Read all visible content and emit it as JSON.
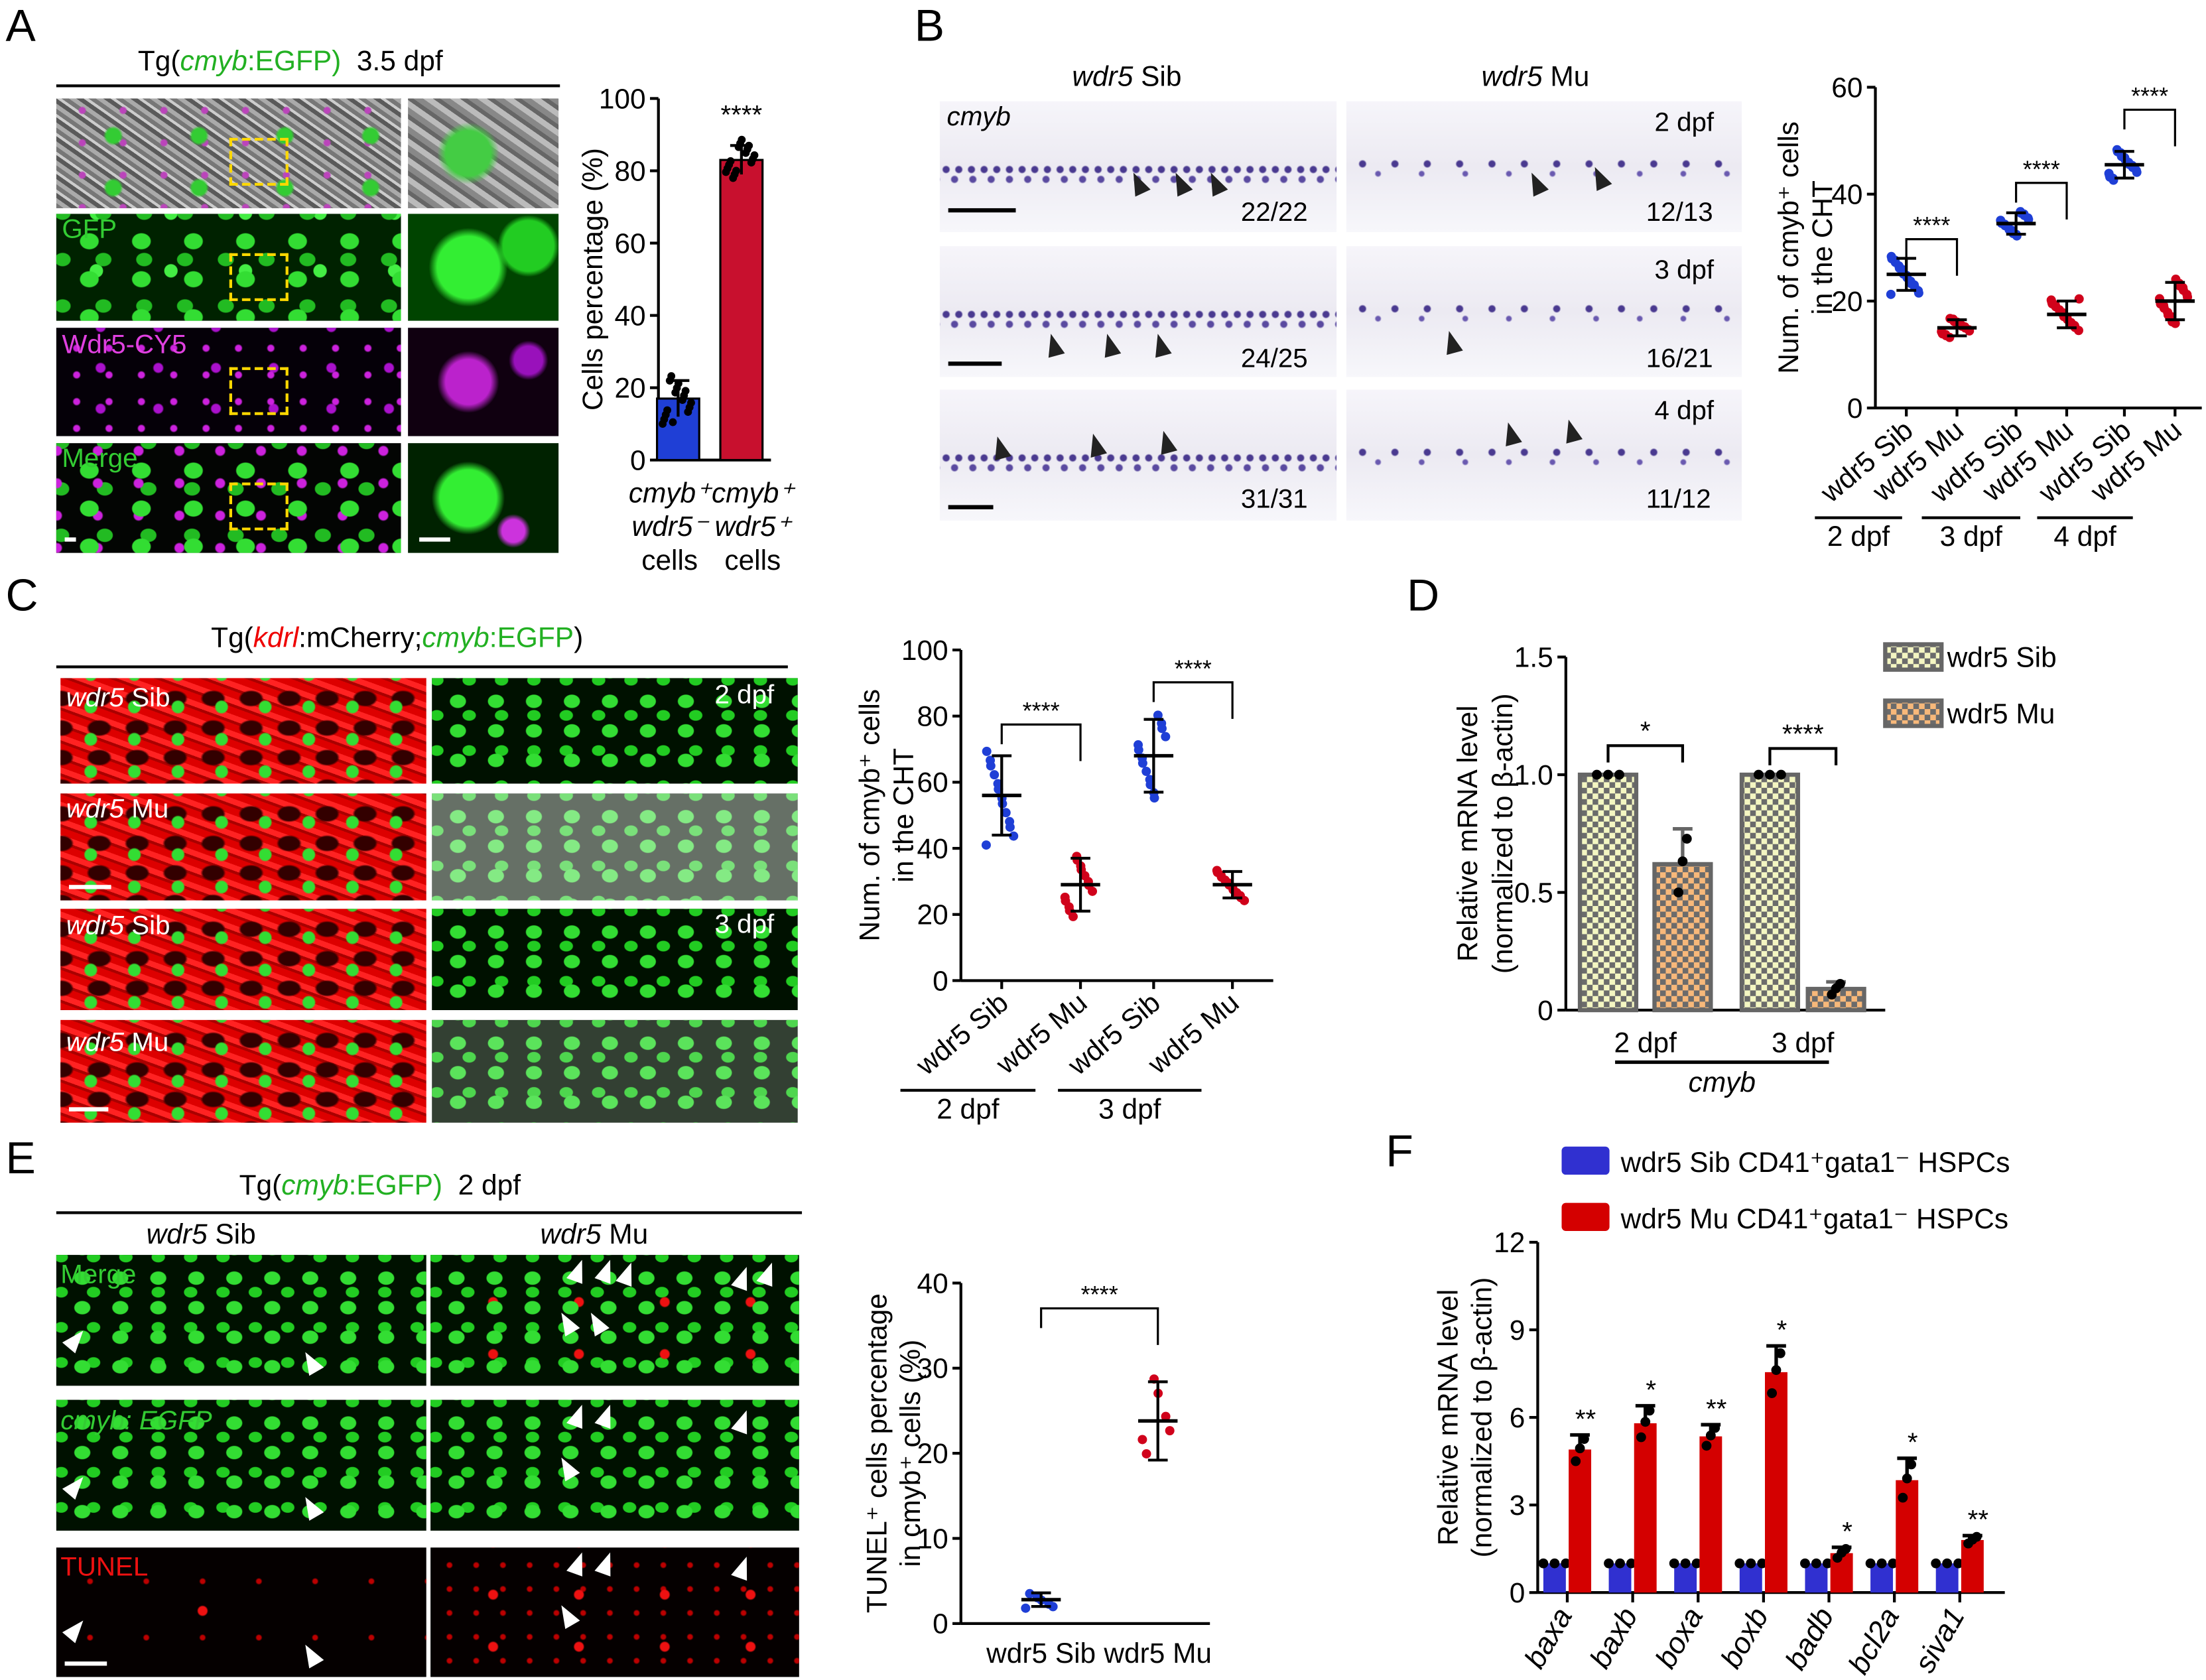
{
  "panels": {
    "A": {
      "letter": "A",
      "title": {
        "pre": "Tg(",
        "gene": "cmyb",
        "post": ":EGFP)",
        "stage": "3.5 dpf"
      },
      "row_labels": [
        "GFP",
        "Wdr5-CY5",
        "Merge"
      ]
    },
    "B": {
      "letter": "B",
      "col_headers": [
        {
          "gene": "wdr5",
          "label": "Sib"
        },
        {
          "gene": "wdr5",
          "label": "Mu"
        }
      ],
      "probe": "cmyb",
      "stages": [
        "2 dpf",
        "3 dpf",
        "4 dpf"
      ],
      "fractions": [
        "22/22",
        "12/13",
        "24/25",
        "16/21",
        "31/31",
        "11/12"
      ]
    },
    "C": {
      "letter": "C",
      "title": {
        "pre": "Tg(",
        "gene1": "kdrl",
        "mid1": ":mCherry;",
        "gene2": "cmyb",
        "mid2": ":EGFP",
        "post": ")"
      },
      "row_labels": [
        {
          "gene": "wdr5",
          "label": "Sib"
        },
        {
          "gene": "wdr5",
          "label": "Mu"
        },
        {
          "gene": "wdr5",
          "label": "Sib"
        },
        {
          "gene": "wdr5",
          "label": "Mu"
        }
      ],
      "stages": [
        "2 dpf",
        "3 dpf"
      ]
    },
    "D": {
      "letter": "D"
    },
    "E": {
      "letter": "E",
      "title": {
        "pre": "Tg(",
        "gene": "cmyb",
        "post": ":EGFP)",
        "stage": "2 dpf"
      },
      "col_headers": [
        {
          "gene": "wdr5",
          "label": "Sib"
        },
        {
          "gene": "wdr5",
          "label": "Mu"
        }
      ],
      "row_labels": [
        "Merge",
        "cmyb: EGFP",
        "TUNEL"
      ]
    },
    "F": {
      "letter": "F"
    }
  },
  "colors": {
    "sib_blue": "#1f3fd6",
    "mu_red": "#d0021b",
    "gfp_green": "#22c422",
    "cy5_magenta": "#d63ad6",
    "mcherry_red": "#e00000"
  },
  "chart_data": [
    {
      "panel": "A",
      "type": "bar",
      "categories": [
        [
          "cmyb⁺",
          "wdr5⁻",
          "cells"
        ],
        [
          "cmyb⁺",
          "wdr5⁺",
          "cells"
        ]
      ],
      "values": [
        17,
        83
      ],
      "error": [
        5,
        4
      ],
      "n": 16,
      "ylabel": [
        "Cells percentage (%)"
      ],
      "ylim": [
        0,
        100
      ],
      "yticks": [
        "0",
        "20",
        "40",
        "60",
        "80",
        "100"
      ],
      "significance": [
        "****"
      ],
      "colors": [
        "#1f3fd6",
        "#c8102e"
      ]
    },
    {
      "panel": "B",
      "type": "scatter",
      "categories": [
        "wdr5 Sib",
        "wdr5 Mu",
        "wdr5 Sib",
        "wdr5 Mu",
        "wdr5 Sib",
        "wdr5 Mu"
      ],
      "groups": [
        "2 dpf",
        "3 dpf",
        "4 dpf"
      ],
      "means": [
        25,
        15,
        34.5,
        17.5,
        45.5,
        20
      ],
      "sd": [
        3,
        1.5,
        2,
        2.5,
        2.5,
        3.5
      ],
      "n": 18,
      "ylabel": [
        "Num. of cmyb⁺ cells",
        "in the CHT"
      ],
      "ylim": [
        0,
        60
      ],
      "yticks": [
        "0",
        "20",
        "40",
        "60"
      ],
      "significance": [
        "****",
        "****",
        "****"
      ]
    },
    {
      "panel": "C",
      "type": "scatter",
      "categories": [
        "wdr5 Sib",
        "wdr5 Mu",
        "wdr5 Sib",
        "wdr5 Mu"
      ],
      "groups": [
        "2 dpf",
        "3 dpf"
      ],
      "means": [
        56,
        29,
        68,
        29
      ],
      "sd": [
        12,
        8,
        11,
        4
      ],
      "n": 13,
      "ylabel": [
        "Num. of cmyb⁺ cells",
        "in the CHT"
      ],
      "ylim": [
        0,
        100
      ],
      "yticks": [
        "0",
        "20",
        "40",
        "60",
        "80",
        "100"
      ],
      "significance": [
        "****",
        "****"
      ]
    },
    {
      "panel": "D",
      "type": "bar",
      "categories": [
        "2 dpf",
        "3 dpf"
      ],
      "xlabel": "cmyb",
      "series": [
        {
          "name": "wdr5 Sib",
          "values": [
            1.0,
            1.0
          ],
          "error": [
            0,
            0
          ]
        },
        {
          "name": "wdr5 Mu",
          "values": [
            0.62,
            0.09
          ],
          "error": [
            0.15,
            0.03
          ]
        }
      ],
      "ylabel": [
        "Relative mRNA level",
        "(normalized to β-actin)"
      ],
      "ylim": [
        0,
        1.5
      ],
      "yticks": [
        "0",
        "0.5",
        "1.0",
        "1.5"
      ],
      "significance": [
        "*",
        "****"
      ],
      "legend": "top-right"
    },
    {
      "panel": "E",
      "type": "scatter",
      "categories": [
        "wdr5 Sib",
        "wdr5 Mu"
      ],
      "means": [
        2.8,
        23.8
      ],
      "sd": [
        0.8,
        4.6
      ],
      "n": 6,
      "ylabel": [
        "TUNEL⁺ cells percentage",
        "in cmyb⁺ cells (%)"
      ],
      "ylim": [
        0,
        40
      ],
      "yticks": [
        "0",
        "10",
        "20",
        "30",
        "40"
      ],
      "significance": [
        "****"
      ]
    },
    {
      "panel": "F",
      "type": "bar",
      "categories": [
        "baxa",
        "baxb",
        "boxa",
        "boxb",
        "badb",
        "bcl2a",
        "siva1"
      ],
      "series": [
        {
          "name": "wdr5 Sib CD41⁺gata1⁻ HSPCs",
          "values": [
            1,
            1,
            1,
            1,
            1,
            1,
            1
          ],
          "error": [
            0,
            0,
            0,
            0,
            0,
            0,
            0
          ]
        },
        {
          "name": "wdr5 Mu CD41⁺gata1⁻ HSPCs",
          "values": [
            4.9,
            5.8,
            5.35,
            7.55,
            1.35,
            3.85,
            1.8
          ],
          "error": [
            0.5,
            0.6,
            0.4,
            0.9,
            0.2,
            0.75,
            0.15
          ]
        }
      ],
      "ylabel": [
        "Relative mRNA level",
        "(normalized to β-actin)"
      ],
      "ylim": [
        0,
        12
      ],
      "yticks": [
        "0",
        "3",
        "6",
        "9",
        "12"
      ],
      "significance": [
        "**",
        "*",
        "**",
        "*",
        "*",
        "*",
        "**"
      ],
      "legend": "top"
    }
  ]
}
